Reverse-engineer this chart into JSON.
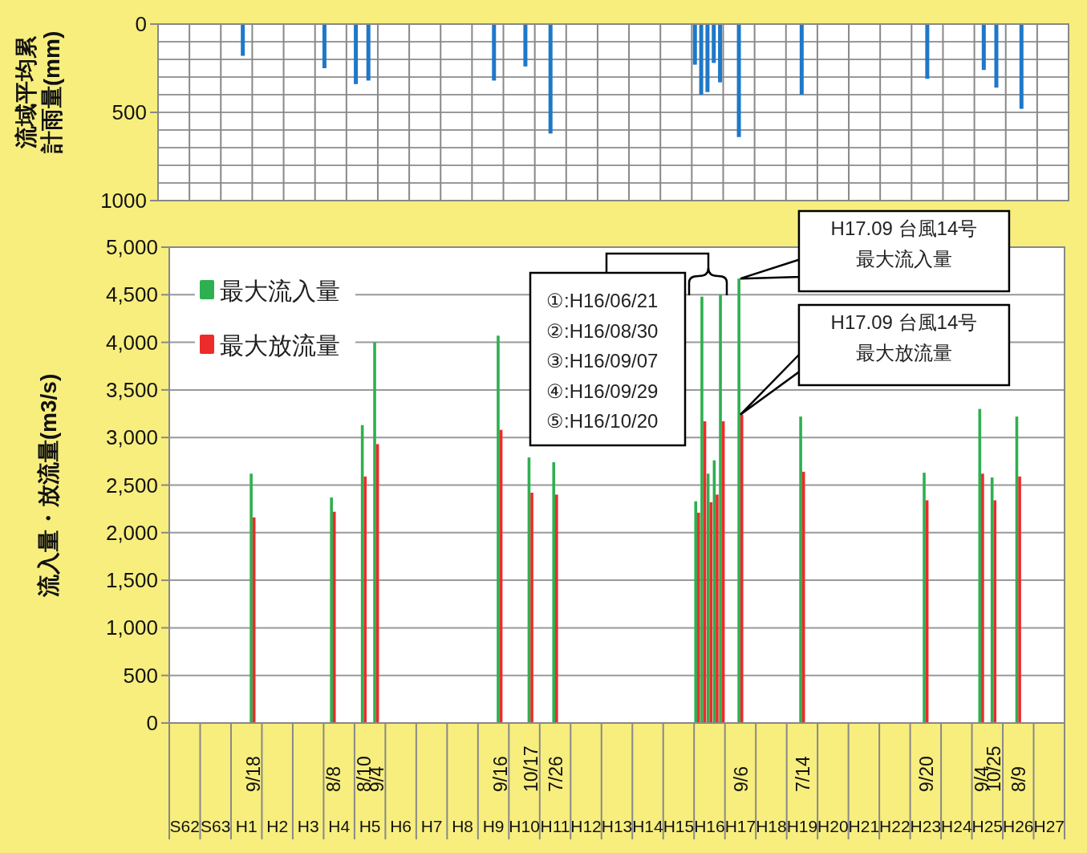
{
  "chart_data": [
    {
      "type": "bar",
      "ylabel": "流域平均累計雨量(mm)",
      "categories": [
        null,
        null,
        null,
        null,
        null,
        null,
        null,
        null,
        null,
        null,
        null,
        null,
        null,
        null,
        null,
        null,
        null,
        null,
        null,
        null,
        null,
        null,
        null,
        null,
        null,
        null,
        null,
        null,
        null,
        null,
        null,
        null,
        null,
        null,
        null,
        null,
        null,
        null,
        null,
        null,
        null,
        null,
        null,
        null,
        null,
        null,
        null,
        null,
        null,
        null,
        null,
        null,
        null,
        null,
        null,
        null,
        null,
        null,
        null,
        null,
        null,
        null,
        null,
        null,
        null,
        null,
        null,
        null,
        null,
        null,
        null,
        null,
        null,
        null,
        null,
        null,
        null,
        null,
        null,
        null,
        null,
        null,
        null,
        null,
        null,
        null,
        null,
        null,
        null,
        null,
        null,
        null,
        null,
        null,
        null,
        null,
        null,
        null,
        null,
        null,
        null,
        null,
        null,
        null,
        null,
        null,
        null,
        null,
        null,
        null,
        null,
        null,
        null,
        null,
        null,
        null,
        null,
        null,
        null,
        null,
        null,
        null,
        null,
        null,
        null,
        null,
        null,
        null,
        null,
        null,
        null,
        null,
        null,
        null,
        null,
        null,
        null,
        null,
        null,
        null,
        null,
        null,
        null,
        null,
        null
      ],
      "series": [
        {
          "color": "#1f78c8",
          "values": [
            null,
            null,
            null,
            null,
            null,
            null,
            null,
            null,
            null,
            null,
            null,
            null,
            null,
            180,
            null,
            null,
            null,
            null,
            null,
            null,
            null,
            null,
            null,
            null,
            null,
            null,
            250,
            null,
            null,
            null,
            null,
            340,
            null,
            320,
            null,
            null,
            null,
            null,
            null,
            null,
            null,
            null,
            null,
            null,
            null,
            null,
            null,
            null,
            null,
            null,
            null,
            null,
            null,
            320,
            null,
            null,
            null,
            null,
            240,
            null,
            null,
            null,
            620,
            null,
            null,
            null,
            null,
            null,
            null,
            null,
            null,
            null,
            null,
            null,
            null,
            null,
            null,
            null,
            null,
            null,
            null,
            null,
            null,
            null,
            null,
            230,
            400,
            385,
            220,
            330,
            null,
            null,
            640,
            null,
            null,
            null,
            null,
            null,
            null,
            null,
            null,
            null,
            400,
            null,
            null,
            null,
            null,
            null,
            null,
            null,
            null,
            null,
            null,
            null,
            null,
            null,
            null,
            null,
            null,
            null,
            null,
            null,
            310,
            null,
            null,
            null,
            null,
            null,
            null,
            null,
            null,
            260,
            null,
            360,
            null,
            null,
            null,
            480,
            null,
            null,
            null,
            null,
            null,
            null,
            null
          ]
        }
      ],
      "ylim": [
        1000,
        0
      ],
      "yticks": [
        0,
        {
          "value": 100,
          "label": null
        },
        {
          "value": 200,
          "label": null
        },
        {
          "value": 300,
          "label": null
        },
        {
          "value": 400,
          "label": null
        },
        500,
        {
          "value": 600,
          "label": null
        },
        {
          "value": 700,
          "label": null
        },
        {
          "value": 800,
          "label": null
        },
        {
          "value": 900,
          "label": null
        },
        1000
      ],
      "grid": true,
      "tick_labels": "y"
    },
    {
      "type": "bar",
      "ylabel": "流入量・放流量(m3/s)",
      "categories": [
        null,
        null,
        null,
        null,
        null,
        null,
        null,
        null,
        null,
        null,
        null,
        null,
        null,
        "9/18",
        null,
        null,
        null,
        null,
        null,
        null,
        null,
        null,
        null,
        null,
        null,
        null,
        "8/8",
        null,
        null,
        null,
        null,
        "8/10",
        null,
        "9/4",
        null,
        null,
        null,
        null,
        null,
        null,
        null,
        null,
        null,
        null,
        null,
        null,
        null,
        null,
        null,
        null,
        null,
        null,
        null,
        "9/16",
        null,
        null,
        null,
        null,
        "10/17",
        null,
        null,
        null,
        "7/26",
        null,
        null,
        null,
        null,
        null,
        null,
        null,
        null,
        null,
        null,
        null,
        null,
        null,
        null,
        null,
        null,
        null,
        null,
        null,
        null,
        null,
        null,
        null,
        null,
        null,
        null,
        null,
        null,
        null,
        "9/6",
        null,
        null,
        null,
        null,
        null,
        null,
        null,
        null,
        null,
        "7/14",
        null,
        null,
        null,
        null,
        null,
        null,
        null,
        null,
        null,
        null,
        null,
        null,
        null,
        null,
        null,
        null,
        null,
        null,
        null,
        "9/20",
        null,
        null,
        null,
        null,
        null,
        null,
        null,
        null,
        "9/4",
        null,
        "10/25",
        null,
        null,
        null,
        "8/9",
        null,
        null,
        null,
        null,
        null,
        null,
        null
      ],
      "series": [
        {
          "name": "最大流入量",
          "color": "#2eb050",
          "values": [
            null,
            null,
            null,
            null,
            null,
            null,
            null,
            null,
            null,
            null,
            null,
            null,
            null,
            2620,
            null,
            null,
            null,
            null,
            null,
            null,
            null,
            null,
            null,
            null,
            null,
            null,
            2370,
            null,
            null,
            null,
            null,
            3130,
            null,
            4000,
            null,
            null,
            null,
            null,
            null,
            null,
            null,
            null,
            null,
            null,
            null,
            null,
            null,
            null,
            null,
            null,
            null,
            null,
            null,
            4070,
            null,
            null,
            null,
            null,
            2790,
            null,
            null,
            null,
            2740,
            null,
            null,
            null,
            null,
            null,
            null,
            null,
            null,
            null,
            null,
            null,
            null,
            null,
            null,
            null,
            null,
            null,
            null,
            null,
            null,
            null,
            null,
            2330,
            4480,
            2620,
            2760,
            4500,
            null,
            null,
            4670,
            null,
            null,
            null,
            null,
            null,
            null,
            null,
            null,
            null,
            3220,
            null,
            null,
            null,
            null,
            null,
            null,
            null,
            null,
            null,
            null,
            null,
            null,
            null,
            null,
            null,
            null,
            null,
            null,
            null,
            2630,
            null,
            null,
            null,
            null,
            null,
            null,
            null,
            null,
            3300,
            null,
            2580,
            null,
            null,
            null,
            3220,
            null,
            null,
            null,
            null,
            null,
            null,
            null
          ]
        },
        {
          "name": "最大放流量",
          "color": "#ec2b2b",
          "values": [
            null,
            null,
            null,
            null,
            null,
            null,
            null,
            null,
            null,
            null,
            null,
            null,
            null,
            2160,
            null,
            null,
            null,
            null,
            null,
            null,
            null,
            null,
            null,
            null,
            null,
            null,
            2220,
            null,
            null,
            null,
            null,
            2590,
            null,
            2930,
            null,
            null,
            null,
            null,
            null,
            null,
            null,
            null,
            null,
            null,
            null,
            null,
            null,
            null,
            null,
            null,
            null,
            null,
            null,
            3080,
            null,
            null,
            null,
            null,
            2420,
            null,
            null,
            null,
            2400,
            null,
            null,
            null,
            null,
            null,
            null,
            null,
            null,
            null,
            null,
            null,
            null,
            null,
            null,
            null,
            null,
            null,
            null,
            null,
            null,
            null,
            null,
            2210,
            3170,
            2320,
            2400,
            3170,
            null,
            null,
            3240,
            null,
            null,
            null,
            null,
            null,
            null,
            null,
            null,
            null,
            2640,
            null,
            null,
            null,
            null,
            null,
            null,
            null,
            null,
            null,
            null,
            null,
            null,
            null,
            null,
            null,
            null,
            null,
            null,
            null,
            2340,
            null,
            null,
            null,
            null,
            null,
            null,
            null,
            null,
            2620,
            null,
            2340,
            null,
            null,
            null,
            2590,
            null,
            null,
            null,
            null,
            null,
            null,
            null
          ]
        }
      ],
      "ylim": [
        0,
        5000
      ],
      "yticks": [
        0,
        500,
        {
          "value": 1000,
          "label": "1,000"
        },
        {
          "value": 1500,
          "label": "1,500"
        },
        {
          "value": 2000,
          "label": "2,000"
        },
        {
          "value": 2500,
          "label": "2,500"
        },
        {
          "value": 3000,
          "label": "3,000"
        },
        {
          "value": 3500,
          "label": "3,500"
        },
        {
          "value": 4000,
          "label": "4,000"
        },
        {
          "value": 4500,
          "label": "4,500"
        },
        {
          "value": 5000,
          "label": "5,000"
        }
      ],
      "grid": "y",
      "legend": "top left",
      "annotations": [
        "①:H16/06/21\n②:H16/08/30\n③:H16/09/07\n④:H16/09/29\n⑤:H16/10/20",
        "H17.09 台風14号最大流入量",
        "H17.09 台風14号最大放流量",
        "S62",
        "S63",
        "H1",
        "H2",
        "H3",
        "H4",
        "H5",
        "H6",
        "H7",
        "H8",
        "H9",
        "H10",
        "H11",
        "H12",
        "H13",
        "H14",
        "H15",
        "H16",
        "H17",
        "H18",
        "H19",
        "H20",
        "H21",
        "H22",
        "H23",
        "H24",
        "H25",
        "H26",
        "H27"
      ]
    }
  ]
}
